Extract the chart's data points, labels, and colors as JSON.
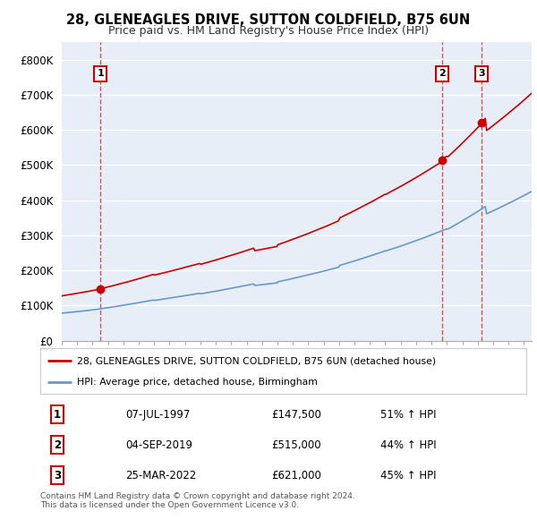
{
  "title1": "28, GLENEAGLES DRIVE, SUTTON COLDFIELD, B75 6UN",
  "title2": "Price paid vs. HM Land Registry's House Price Index (HPI)",
  "xlim_start": 1995.0,
  "xlim_end": 2025.5,
  "ylim": [
    0,
    850000
  ],
  "yticks": [
    0,
    100000,
    200000,
    300000,
    400000,
    500000,
    600000,
    700000,
    800000
  ],
  "ytick_labels": [
    "£0",
    "£100K",
    "£200K",
    "£300K",
    "£400K",
    "£500K",
    "£600K",
    "£700K",
    "£800K"
  ],
  "sale_dates": [
    1997.52,
    2019.67,
    2022.23
  ],
  "sale_prices": [
    147500,
    515000,
    621000
  ],
  "sale_labels": [
    "1",
    "2",
    "3"
  ],
  "red_line_color": "#cc0000",
  "blue_line_color": "#6699cc",
  "dashed_line_color": "#cc4444",
  "background_color": "#e8eef8",
  "legend_line1": "28, GLENEAGLES DRIVE, SUTTON COLDFIELD, B75 6UN (detached house)",
  "legend_line2": "HPI: Average price, detached house, Birmingham",
  "table_data": [
    [
      "1",
      "07-JUL-1997",
      "£147,500",
      "51% ↑ HPI"
    ],
    [
      "2",
      "04-SEP-2019",
      "£515,000",
      "44% ↑ HPI"
    ],
    [
      "3",
      "25-MAR-2022",
      "£621,000",
      "45% ↑ HPI"
    ]
  ],
  "footnote": "Contains HM Land Registry data © Crown copyright and database right 2024.\nThis data is licensed under the Open Government Licence v3.0."
}
